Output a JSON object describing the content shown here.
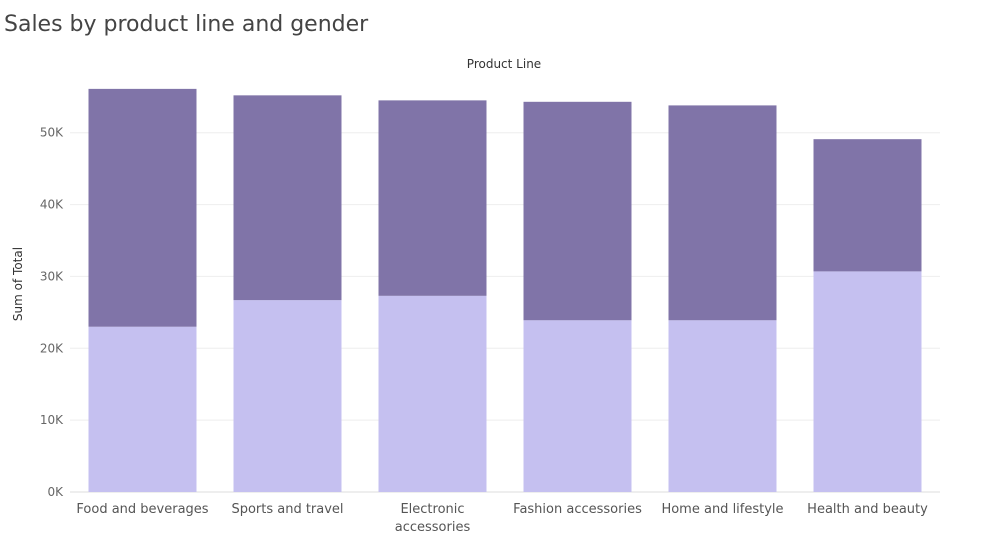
{
  "chart_data": {
    "type": "bar",
    "stacked": true,
    "title": "Sales by product line and gender",
    "column_header": "Product Line",
    "ylabel": "Sum of Total",
    "xlabel": "",
    "ylim": [
      0,
      56500
    ],
    "yticks": [
      0,
      10000,
      20000,
      30000,
      40000,
      50000
    ],
    "ytick_labels": [
      "0K",
      "10K",
      "20K",
      "30K",
      "40K",
      "50K"
    ],
    "categories": [
      [
        "Food and beverages"
      ],
      [
        "Sports and travel"
      ],
      [
        "Electronic",
        "accessories"
      ],
      [
        "Fashion accessories"
      ],
      [
        "Home and lifestyle"
      ],
      [
        "Health and beauty"
      ]
    ],
    "series": [
      {
        "color": "#c5c0f0",
        "values": [
          23000,
          26700,
          27300,
          23900,
          23900,
          30700
        ]
      },
      {
        "color": "#8074a8",
        "values": [
          33100,
          28500,
          27200,
          30400,
          29900,
          18400
        ]
      }
    ],
    "grid": true,
    "gridColor": "#eeeeee"
  }
}
